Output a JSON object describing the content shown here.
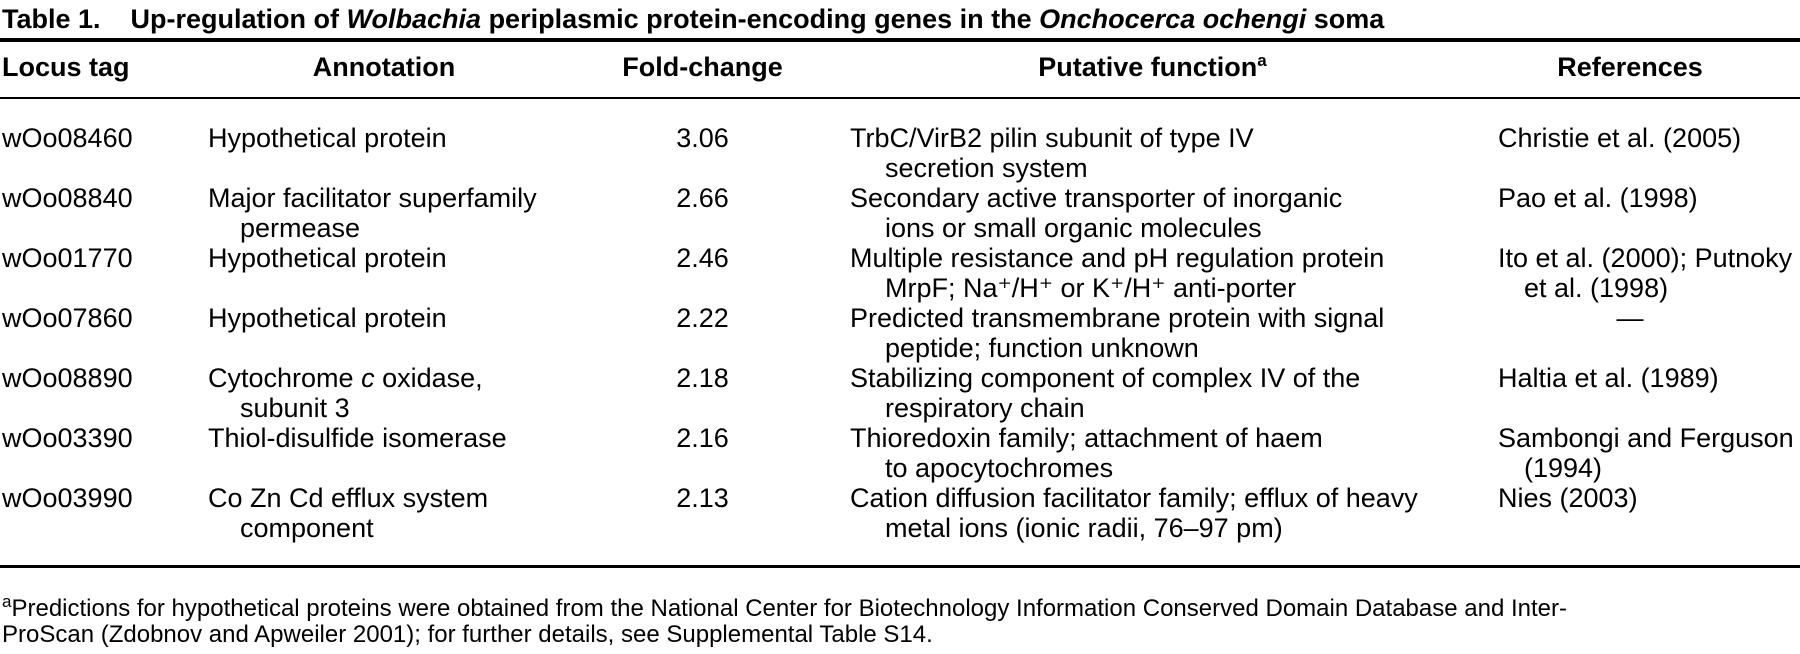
{
  "table": {
    "label": "Table 1.",
    "title": {
      "part1": "Up-regulation of ",
      "italic1": "Wolbachia",
      "part2": " periplasmic protein-encoding genes in the ",
      "italic2": "Onchocerca ochengi",
      "part3": " soma"
    },
    "headers": {
      "locus": "Locus tag",
      "annotation": "Annotation",
      "fold": "Fold-change",
      "function": "Putative function",
      "function_sup": "a",
      "references": "References"
    },
    "rows": [
      {
        "locus": "wOo08460",
        "annotation1": "Hypothetical protein",
        "fold": "3.06",
        "function1": "TrbC/VirB2 pilin subunit of type IV",
        "function2": "secretion system",
        "ref1": "Christie et al. (2005)"
      },
      {
        "locus": "wOo08840",
        "annotation1": "Major facilitator superfamily",
        "annotation2": "permease",
        "fold": "2.66",
        "function1": "Secondary active transporter of inorganic",
        "function2": "ions or small organic molecules",
        "ref1": "Pao et al. (1998)"
      },
      {
        "locus": "wOo01770",
        "annotation1": "Hypothetical protein",
        "fold": "2.46",
        "function1": "Multiple resistance and pH regulation protein",
        "function2": "MrpF; Na⁺/H⁺ or K⁺/H⁺ anti-porter",
        "ref1": "Ito et al. (2000); Putnoky",
        "ref2": "et al. (1998)"
      },
      {
        "locus": "wOo07860",
        "annotation1": "Hypothetical protein",
        "fold": "2.22",
        "function1": "Predicted transmembrane protein with signal",
        "function2": "peptide; function unknown",
        "ref1": "—"
      },
      {
        "locus": "wOo08890",
        "annotation1_pre": "Cytochrome ",
        "annotation1_italic": "c",
        "annotation1_post": " oxidase,",
        "annotation2": "subunit 3",
        "fold": "2.18",
        "function1": "Stabilizing component of complex IV of the",
        "function2": "respiratory chain",
        "ref1": "Haltia et al. (1989)"
      },
      {
        "locus": "wOo03390",
        "annotation1": "Thiol-disulfide isomerase",
        "fold": "2.16",
        "function1": "Thioredoxin family; attachment of haem",
        "function2": "to apocytochromes",
        "ref1": "Sambongi and Ferguson",
        "ref2": "(1994)"
      },
      {
        "locus": "wOo03990",
        "annotation1": "Co Zn Cd efflux system",
        "annotation2": "component",
        "fold": "2.13",
        "function1": "Cation diffusion facilitator family; efflux of heavy",
        "function2": "metal ions (ionic radii, 76–97 pm)",
        "ref1": "Nies (2003)"
      }
    ]
  },
  "footnote": {
    "sup": "a",
    "line1": "Predictions for hypothetical proteins were obtained from the National Center for Biotechnology Information Conserved Domain Database and Inter-",
    "line2": "ProScan (Zdobnov and Apweiler 2001); for further details, see Supplemental Table S14."
  }
}
